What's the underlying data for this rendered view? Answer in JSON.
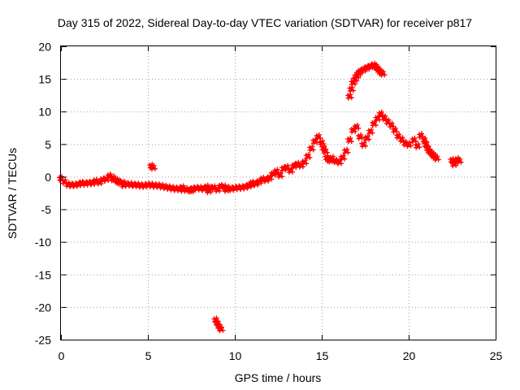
{
  "chart_data": {
    "type": "scatter",
    "title": "Day 315 of 2022, Sidereal Day-to-day VTEC variation (SDTVAR) for receiver p817",
    "xlabel": "GPS time / hours",
    "ylabel": "SDTVAR / TECUs",
    "xlim": [
      0,
      25
    ],
    "ylim": [
      -25,
      20
    ],
    "xticks": [
      "0",
      "5",
      "10",
      "15",
      "20",
      "25"
    ],
    "yticks": [
      "-25",
      "-20",
      "-15",
      "-10",
      "-5",
      "0",
      "5",
      "10",
      "15",
      "20"
    ],
    "grid": true,
    "marker": "plus",
    "color": "#ff0000",
    "series": [
      {
        "name": "SDTVAR",
        "x": [
          0.0,
          0.2,
          0.4,
          0.6,
          0.8,
          1.0,
          1.2,
          1.4,
          1.6,
          1.8,
          2.0,
          2.2,
          2.4,
          2.6,
          2.8,
          3.0,
          3.2,
          3.4,
          3.6,
          3.8,
          4.0,
          4.2,
          4.4,
          4.6,
          4.8,
          5.0,
          5.2,
          5.4,
          5.6,
          5.8,
          6.0,
          6.2,
          6.4,
          6.6,
          6.8,
          7.0,
          7.2,
          7.4,
          7.6,
          7.8,
          8.0,
          8.2,
          8.4,
          8.6,
          8.8,
          9.0,
          9.2,
          9.4,
          9.6,
          9.8,
          10.0,
          10.2,
          10.4,
          10.6,
          10.8,
          11.0,
          11.2,
          11.4,
          11.6,
          11.8,
          12.0,
          12.2,
          12.4,
          12.6,
          12.8,
          13.0,
          13.2,
          13.4,
          13.6,
          13.8,
          14.0,
          14.2,
          14.4,
          14.6,
          14.8,
          15.0,
          15.1,
          15.2,
          15.3,
          15.4,
          15.5,
          15.6,
          15.8,
          16.0,
          16.2,
          16.4,
          16.6,
          16.8,
          17.0,
          17.2,
          17.4,
          17.6,
          17.8,
          18.0,
          18.2,
          18.4,
          18.6,
          18.8,
          19.0,
          19.2,
          19.4,
          19.6,
          19.8,
          20.0,
          20.3,
          20.5,
          20.7,
          20.9,
          21.0,
          21.1,
          21.2,
          21.3,
          21.4,
          21.5,
          21.6,
          22.5,
          22.6,
          22.7,
          22.8,
          22.9,
          5.2,
          5.3,
          8.9,
          9.0,
          9.1,
          9.2,
          16.6,
          16.7,
          16.8,
          16.9,
          17.0,
          17.1,
          17.2,
          17.4,
          17.6,
          17.8,
          18.0,
          18.1,
          18.2,
          18.3,
          18.4,
          18.5,
          3.0,
          3.3,
          3.6,
          7.0,
          7.5,
          8.5,
          9.5,
          11.0
        ],
        "y": [
          -0.3,
          -0.8,
          -1.2,
          -1.3,
          -1.3,
          -1.2,
          -1.0,
          -1.1,
          -1.0,
          -1.0,
          -0.7,
          -0.9,
          -0.5,
          -0.4,
          0.1,
          -0.2,
          -0.6,
          -0.9,
          -1.0,
          -1.2,
          -1.2,
          -1.3,
          -1.3,
          -1.4,
          -1.4,
          -1.3,
          -1.3,
          -1.4,
          -1.4,
          -1.5,
          -1.6,
          -1.7,
          -1.8,
          -1.9,
          -1.9,
          -2.0,
          -2.0,
          -2.1,
          -1.9,
          -1.8,
          -1.8,
          -1.9,
          -1.6,
          -1.8,
          -1.7,
          -2.0,
          -1.5,
          -1.6,
          -1.8,
          -1.9,
          -1.8,
          -1.7,
          -1.7,
          -1.6,
          -1.4,
          -1.2,
          -1.1,
          -0.8,
          -0.4,
          -0.5,
          -0.2,
          0.4,
          0.8,
          0.2,
          1.2,
          1.4,
          0.9,
          1.6,
          1.9,
          1.7,
          2.2,
          3.1,
          4.3,
          5.4,
          6.1,
          5.2,
          4.4,
          3.9,
          2.9,
          2.6,
          2.5,
          2.8,
          2.4,
          2.2,
          2.9,
          3.9,
          5.6,
          7.1,
          7.6,
          6.1,
          4.9,
          5.9,
          6.9,
          8.1,
          8.9,
          9.6,
          9.0,
          8.4,
          7.9,
          7.1,
          6.2,
          5.7,
          5.1,
          4.9,
          5.6,
          4.7,
          6.3,
          5.6,
          4.9,
          4.3,
          3.9,
          3.6,
          3.3,
          3.1,
          2.8,
          2.5,
          1.9,
          2.3,
          2.6,
          2.4,
          1.6,
          1.4,
          -22.0,
          -22.5,
          -23.0,
          -23.4,
          12.3,
          13.4,
          14.4,
          14.9,
          15.4,
          15.8,
          16.1,
          16.4,
          16.7,
          16.9,
          17.1,
          16.9,
          16.6,
          16.3,
          16.0,
          15.8,
          -0.4,
          -0.8,
          -1.3,
          -1.7,
          -2.1,
          -2.2,
          -2.0,
          -1.0
        ]
      }
    ]
  }
}
